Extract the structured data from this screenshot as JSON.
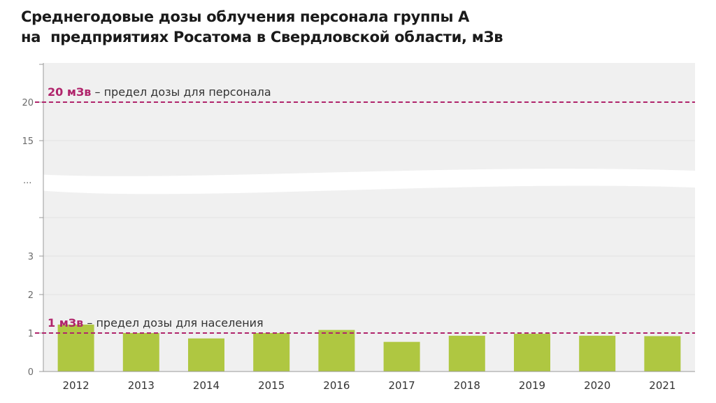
{
  "title_lines": [
    "Среднегодовые дозы облучения персонала группы А",
    "на  предприятиях Росатома в Свердловской области, мЗв"
  ],
  "chart_data": {
    "type": "bar",
    "categories": [
      "2012",
      "2013",
      "2014",
      "2015",
      "2016",
      "2017",
      "2018",
      "2019",
      "2020",
      "2021"
    ],
    "values": [
      1.22,
      1.0,
      0.86,
      1.0,
      1.08,
      0.77,
      0.93,
      0.98,
      0.93,
      0.92
    ],
    "ylabel": "мЗв",
    "y_ticks_lower": [
      "0",
      "1",
      "2",
      "3"
    ],
    "y_ticks_upper": [
      "15",
      "20"
    ],
    "axis_break_label": "...",
    "axis_break": true,
    "lower_segment_range": [
      0,
      4
    ],
    "upper_segment_range": [
      10,
      24
    ],
    "reference_lines": [
      {
        "value": 20,
        "bold": "20 мЗв",
        "text": " – предел дозы для персонала",
        "color": "#b0246b"
      },
      {
        "value": 1,
        "bold": "1 мЗв",
        "text": " – предел дозы для населения",
        "color": "#b0246b"
      }
    ],
    "bar_color": "#afc741",
    "plot_background": "#f0f0f0",
    "grid": true
  }
}
